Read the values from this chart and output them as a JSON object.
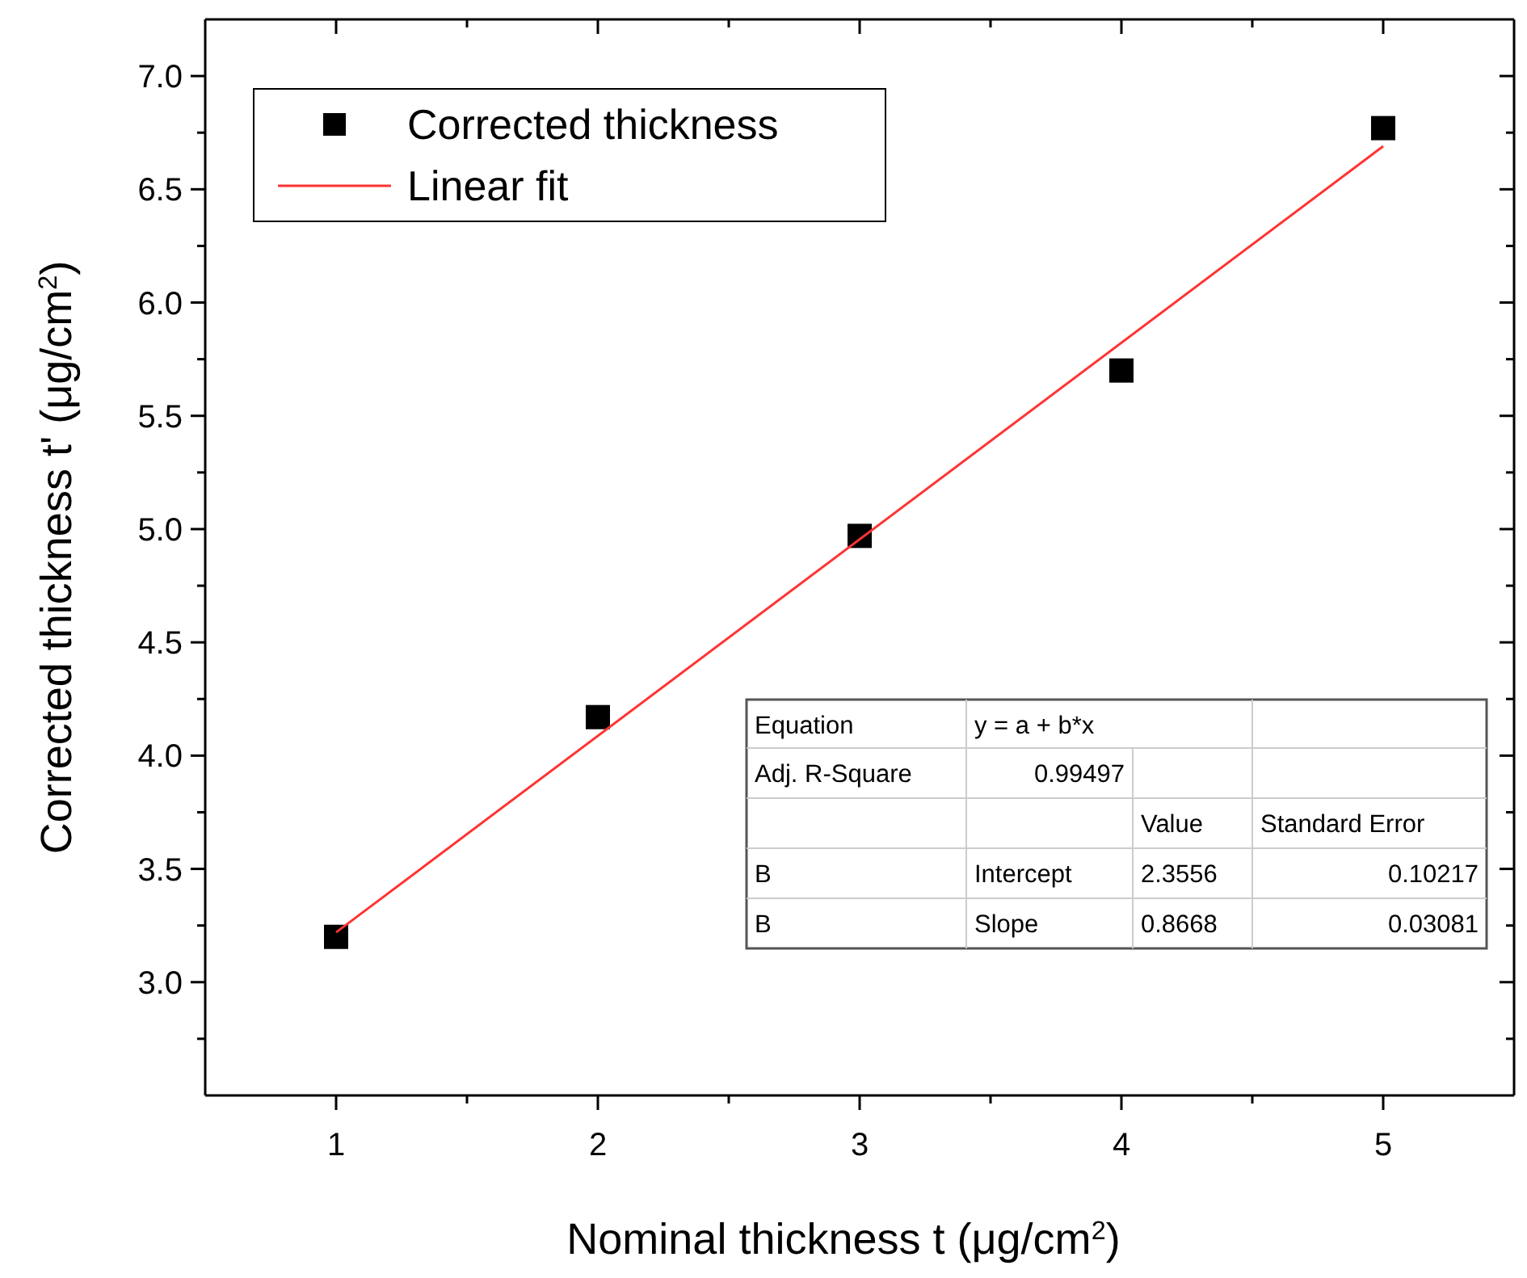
{
  "chart_data": {
    "type": "scatter",
    "xlabel": "Nominal thickness t (μg/cm$^{2}$)",
    "ylabel": "Corrected thickness t' (μg/cm$^{2}$)",
    "x": [
      1,
      2,
      3,
      4,
      5
    ],
    "series": [
      {
        "name": "Corrected thickness",
        "type": "scatter",
        "color": "#000000",
        "marker": "square",
        "values": [
          3.2,
          4.17,
          4.97,
          5.7,
          6.77
        ]
      },
      {
        "name": "Linear fit",
        "type": "line",
        "color": "#ff3333",
        "marker": "none",
        "line_style": "solid",
        "x": [
          1,
          5
        ],
        "values": [
          3.22,
          6.69
        ]
      }
    ],
    "xlim": [
      0.5,
      5.5
    ],
    "ylim": [
      2.5,
      7.25
    ],
    "xticks": [
      1,
      {
        "value": 1.5,
        "label": null
      },
      2,
      {
        "value": 2.5,
        "label": null
      },
      3,
      {
        "value": 3.5,
        "label": null
      },
      4,
      {
        "value": 4.5,
        "label": null
      },
      5
    ],
    "yticks": [
      {
        "value": 2.75,
        "label": null
      },
      {
        "value": 3,
        "label": "3.0"
      },
      {
        "value": 3.25,
        "label": null
      },
      {
        "value": 3.5,
        "label": "3.5"
      },
      {
        "value": 3.75,
        "label": null
      },
      {
        "value": 4,
        "label": "4.0"
      },
      {
        "value": 4.25,
        "label": null
      },
      {
        "value": 4.5,
        "label": "4.5"
      },
      {
        "value": 4.75,
        "label": null
      },
      {
        "value": 5,
        "label": "5.0"
      },
      {
        "value": 5.25,
        "label": null
      },
      {
        "value": 5.5,
        "label": "5.5"
      },
      {
        "value": 5.75,
        "label": null
      },
      {
        "value": 6,
        "label": "6.0"
      },
      {
        "value": 6.25,
        "label": null
      },
      {
        "value": 6.5,
        "label": "6.5"
      },
      {
        "value": 6.75,
        "label": null
      },
      {
        "value": 7,
        "label": "7.0"
      }
    ],
    "legend": "top left",
    "grid": false,
    "annotations": [
      "Equation",
      "y = a + b*x",
      "Adj. R-Square",
      "0.99497",
      "Value",
      "Standard Error",
      "B",
      "Intercept",
      "2.3556",
      "0.10217",
      "B",
      "Slope",
      "0.8668",
      "0.03081"
    ]
  }
}
